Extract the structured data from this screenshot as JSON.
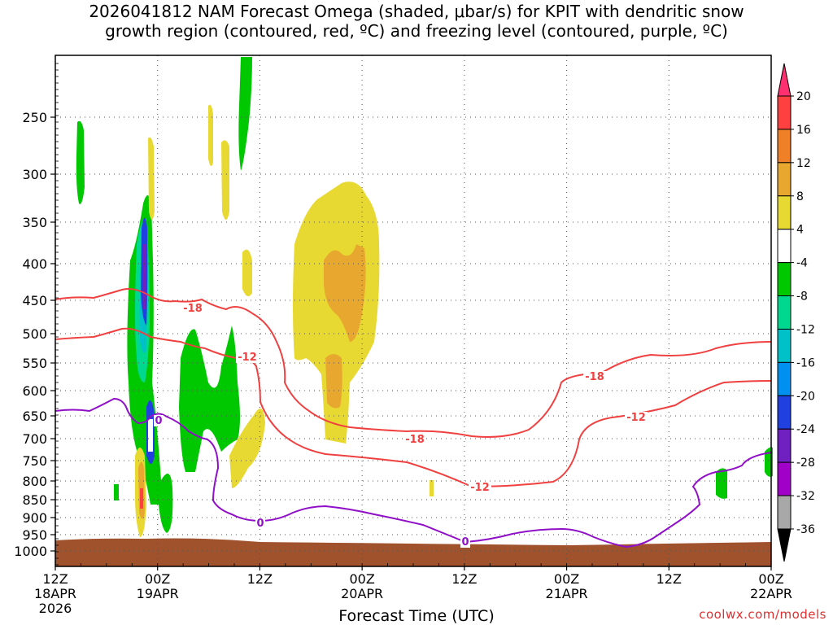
{
  "title": {
    "line1": "2026041812 NAM Forecast Omega (shaded, μbar/s) for KPIT with dendritic snow",
    "line2": "growth region (contoured, red, ºC) and freezing level (contoured, purple, ºC)"
  },
  "xlabel": "Forecast Time (UTC)",
  "credit": "coolwx.com/models",
  "chart_data": {
    "type": "heatmap",
    "y_axis": {
      "label": "",
      "scale": "pressure (log-like, inverted)",
      "ticks": [
        "250",
        "300",
        "350",
        "400",
        "450",
        "500",
        "550",
        "600",
        "650",
        "700",
        "750",
        "800",
        "850",
        "900",
        "950",
        "1000"
      ]
    },
    "x_axis": {
      "ticks": [
        {
          "time": "12Z",
          "date": "18APR",
          "year": "2026"
        },
        {
          "time": "00Z",
          "date": "19APR",
          "year": ""
        },
        {
          "time": "12Z",
          "date": "",
          "year": ""
        },
        {
          "time": "00Z",
          "date": "20APR",
          "year": ""
        },
        {
          "time": "12Z",
          "date": "",
          "year": ""
        },
        {
          "time": "00Z",
          "date": "21APR",
          "year": ""
        },
        {
          "time": "12Z",
          "date": "",
          "year": ""
        },
        {
          "time": "00Z",
          "date": "22APR",
          "year": ""
        }
      ]
    },
    "grid": true,
    "colorbar": {
      "labels": [
        "20",
        "16",
        "12",
        "8",
        "4",
        "-4",
        "-8",
        "-12",
        "-16",
        "-20",
        "-24",
        "-28",
        "-32",
        "-36"
      ],
      "colors": [
        "#ff3070",
        "#ff4040",
        "#f08028",
        "#e8a830",
        "#e8d832",
        "#ffffff",
        "#00c800",
        "#00d890",
        "#00c0c8",
        "#0090f0",
        "#2040e0",
        "#7020c0",
        "#a000c8",
        "#a8a8a8",
        "#000000"
      ]
    },
    "contours": {
      "red": {
        "color": "#f04040",
        "labels": [
          "-18",
          "-12",
          "-18",
          "-12",
          "-18",
          "-12"
        ]
      },
      "purple": {
        "color": "#9010c8",
        "labels": [
          "0",
          "0",
          "0"
        ]
      }
    },
    "terrain_color": "#a0522d"
  }
}
